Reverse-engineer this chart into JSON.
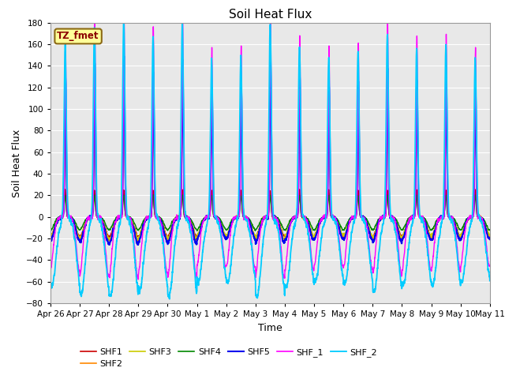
{
  "title": "Soil Heat Flux",
  "xlabel": "Time",
  "ylabel": "Soil Heat Flux",
  "ylim": [
    -80,
    180
  ],
  "yticks": [
    -80,
    -60,
    -40,
    -20,
    0,
    20,
    40,
    60,
    80,
    100,
    120,
    140,
    160,
    180
  ],
  "xtick_labels": [
    "Apr 26",
    "Apr 27",
    "Apr 28",
    "Apr 29",
    "Apr 30",
    "May 1",
    "May 2",
    "May 3",
    "May 4",
    "May 5",
    "May 6",
    "May 7",
    "May 8",
    "May 9",
    "May 10",
    "May 11"
  ],
  "annotation_text": "TZ_fmet",
  "annotation_color": "#8B0000",
  "annotation_bg": "#FFFF99",
  "annotation_border": "#8B6914",
  "series": [
    {
      "name": "SHF1",
      "color": "#CC0000",
      "lw": 1.0
    },
    {
      "name": "SHF2",
      "color": "#FF8800",
      "lw": 1.0
    },
    {
      "name": "SHF3",
      "color": "#CCCC00",
      "lw": 1.0
    },
    {
      "name": "SHF4",
      "color": "#008800",
      "lw": 1.0
    },
    {
      "name": "SHF5",
      "color": "#0000EE",
      "lw": 1.5
    },
    {
      "name": "SHF_1",
      "color": "#FF00FF",
      "lw": 1.0
    },
    {
      "name": "SHF_2",
      "color": "#00CCFF",
      "lw": 1.3
    }
  ],
  "background_color": "#E8E8E8",
  "grid_color": "#FFFFFF",
  "n_days": 15,
  "pts_per_day": 288
}
